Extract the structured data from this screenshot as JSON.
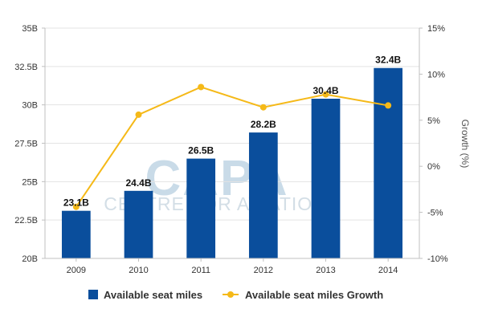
{
  "watermark": {
    "logo": "CAPA",
    "sub": "CENTRE FOR AVIATION"
  },
  "chart_data": {
    "type": "bar",
    "categories": [
      "2009",
      "2010",
      "2011",
      "2012",
      "2013",
      "2014"
    ],
    "series": [
      {
        "name": "Available seat miles",
        "type": "bar",
        "axis": "left",
        "color": "#0a4e9c",
        "values": [
          23.1,
          24.4,
          26.5,
          28.2,
          30.4,
          32.4
        ],
        "labels": [
          "23.1B",
          "24.4B",
          "26.5B",
          "28.2B",
          "30.4B",
          "32.4B"
        ]
      },
      {
        "name": "Available seat miles Growth",
        "type": "line",
        "axis": "right",
        "color": "#f5b918",
        "values": [
          -4.4,
          5.6,
          8.6,
          6.4,
          7.8,
          6.6
        ]
      }
    ],
    "y_left": {
      "min": 20,
      "max": 35,
      "ticks": [
        20,
        22.5,
        25,
        27.5,
        30,
        32.5,
        35
      ],
      "tick_labels": [
        "20B",
        "22.5B",
        "25B",
        "27.5B",
        "30B",
        "32.5B",
        "35B"
      ]
    },
    "y_right": {
      "label": "Growth (%)",
      "min": -10,
      "max": 15,
      "ticks": [
        -10,
        -5,
        0,
        5,
        10,
        15
      ],
      "tick_labels": [
        "-10%",
        "-5%",
        "0%",
        "5%",
        "10%",
        "15%"
      ]
    },
    "grid": true,
    "legend_position": "bottom"
  }
}
